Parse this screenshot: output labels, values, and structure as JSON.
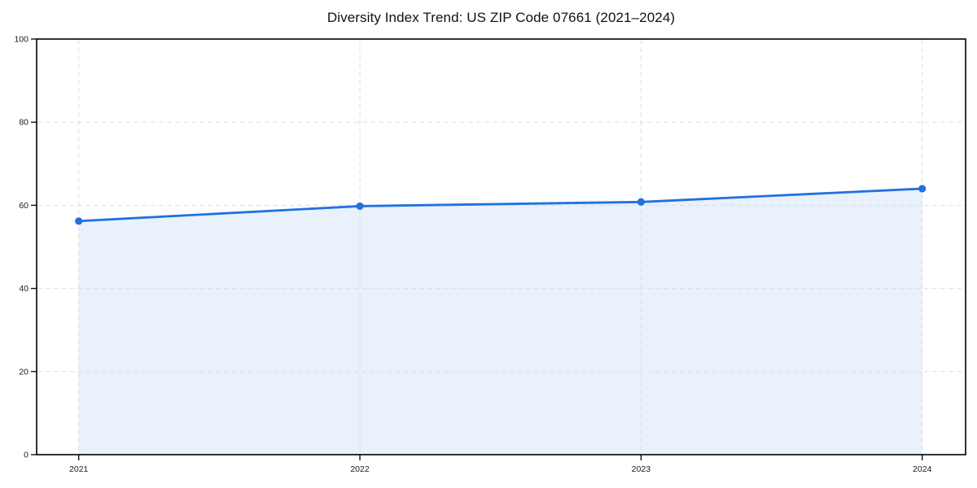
{
  "chart_data": {
    "type": "area",
    "title": "Diversity Index Trend: US ZIP Code 07661 (2021–2024)",
    "xlabel": "",
    "ylabel": "",
    "xtick_labels": [
      "2021",
      "2022",
      "2023",
      "2024"
    ],
    "x": [
      2021,
      2022,
      2023,
      2024
    ],
    "values": [
      56.2,
      59.8,
      60.8,
      64.0
    ],
    "ylim": [
      0,
      100
    ],
    "yticks": [
      0,
      20,
      40,
      60,
      80,
      100
    ],
    "grid": true,
    "grid_style": "dashed",
    "legend": "none",
    "marker": "circle",
    "colors": {
      "line": "#2171e0",
      "fill": "rgba(33, 113, 224, 0.10)",
      "grid": "#dedede",
      "spine": "#000000",
      "tick_text": "#1a1a1a",
      "title_text": "#111111",
      "background": "#ffffff"
    }
  }
}
